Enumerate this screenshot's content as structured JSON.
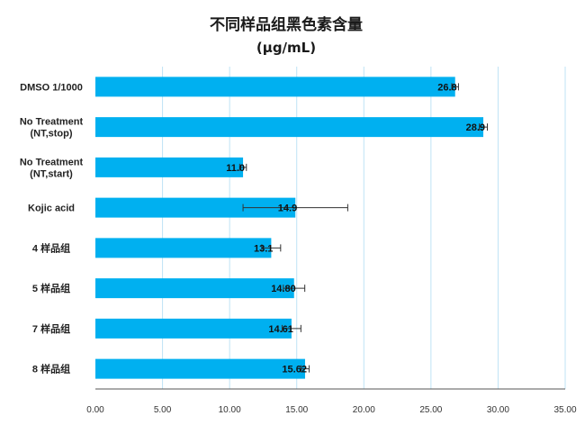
{
  "chart_data": {
    "type": "bar",
    "orientation": "horizontal",
    "title": "不同样品组黑色素含量",
    "subtitle": "(μg/mL)",
    "categories": [
      [
        "DMSO 1/1000"
      ],
      [
        "No Treatment",
        "(NT,stop)"
      ],
      [
        "No Treatment",
        "(NT,start)"
      ],
      [
        "Kojic acid"
      ],
      [
        "4 样品组"
      ],
      [
        "5 样品组"
      ],
      [
        "7 样品组"
      ],
      [
        "8 样品组"
      ]
    ],
    "values": [
      26.8,
      28.9,
      11.0,
      14.9,
      13.1,
      14.8,
      14.61,
      15.62
    ],
    "error": [
      0.25,
      0.3,
      0.25,
      3.9,
      0.7,
      0.8,
      0.7,
      0.3
    ],
    "data_labels": [
      "26.8",
      "28.9",
      "11.0",
      "14.9",
      "13.1",
      "14.80",
      "14.61",
      "15.62"
    ],
    "xlim": [
      0,
      35
    ],
    "xticks": [
      "0.00",
      "5.00",
      "10.00",
      "15.00",
      "20.00",
      "25.00",
      "30.00",
      "35.00"
    ],
    "xtick_values": [
      0,
      5,
      10,
      15,
      20,
      25,
      30,
      35
    ],
    "grid": true,
    "colors": {
      "bar": "#00b0f0",
      "grid": "#bfe3f5",
      "error": "#333333",
      "axis": "#555555"
    }
  }
}
